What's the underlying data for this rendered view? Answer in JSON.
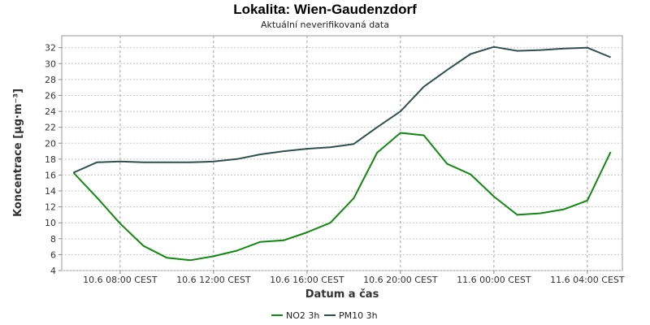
{
  "chart_data": {
    "type": "line",
    "title": "Lokalita: Wien-Gaudenzdorf",
    "subtitle": "Aktuální neverifikovaná data",
    "xlabel": "Datum a čas",
    "ylabel": "Koncentrace [µg·m⁻³]",
    "ylim": [
      4,
      33.5
    ],
    "yticks": [
      4,
      6,
      8,
      10,
      12,
      14,
      16,
      18,
      20,
      22,
      24,
      26,
      28,
      30,
      32
    ],
    "x": [
      "10.6 06:00",
      "10.6 07:00",
      "10.6 08:00",
      "10.6 09:00",
      "10.6 10:00",
      "10.6 11:00",
      "10.6 12:00",
      "10.6 13:00",
      "10.6 14:00",
      "10.6 15:00",
      "10.6 16:00",
      "10.6 17:00",
      "10.6 18:00",
      "10.6 19:00",
      "10.6 20:00",
      "10.6 21:00",
      "10.6 22:00",
      "10.6 23:00",
      "11.6 00:00",
      "11.6 01:00",
      "11.6 02:00",
      "11.6 03:00",
      "11.6 04:00",
      "11.6 05:00"
    ],
    "xticks": [
      "10.6 08:00 CEST",
      "10.6 12:00 CEST",
      "10.6 16:00 CEST",
      "10.6 20:00 CEST",
      "11.6 00:00 CEST",
      "11.6 04:00 CEST"
    ],
    "xtick_hours": [
      2,
      6,
      10,
      14,
      18,
      22
    ],
    "x_hour_range": [
      -0.5,
      23.5
    ],
    "grid": true,
    "legend_position": "bottom-center",
    "series": [
      {
        "name": "NO2 3h",
        "color": "#118811",
        "values": [
          16.3,
          13.2,
          9.9,
          7.1,
          5.6,
          5.3,
          5.8,
          6.5,
          7.6,
          7.8,
          8.8,
          10.0,
          13.1,
          18.8,
          21.3,
          21.0,
          17.4,
          16.1,
          13.3,
          11.0,
          11.2,
          11.7,
          12.8,
          18.9
        ]
      },
      {
        "name": "PM10 3h",
        "color": "#2f4f4f",
        "values": [
          16.3,
          17.6,
          17.7,
          17.6,
          17.6,
          17.6,
          17.7,
          18.0,
          18.6,
          19.0,
          19.3,
          19.5,
          19.9,
          22.0,
          24.0,
          27.1,
          29.2,
          31.2,
          32.1,
          31.6,
          31.7,
          31.9,
          32.0,
          30.8
        ]
      }
    ]
  }
}
